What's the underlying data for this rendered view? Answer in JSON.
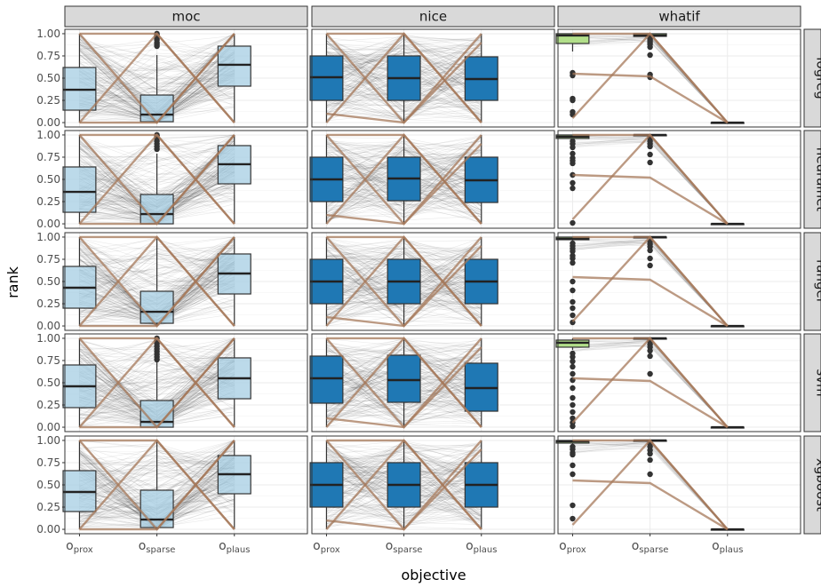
{
  "chart_data": {
    "type": "box",
    "facet_columns": [
      "moc",
      "nice",
      "whatif"
    ],
    "facet_rows": [
      "logreg",
      "neuralnet",
      "ranger",
      "svm",
      "xgboost"
    ],
    "x_categories": [
      {
        "base": "o",
        "sub": "prox"
      },
      {
        "base": "o",
        "sub": "sparse"
      },
      {
        "base": "o",
        "sub": "plaus"
      }
    ],
    "xlabel": "objective",
    "ylabel": "rank",
    "ylim": [
      0,
      1
    ],
    "yticks": [
      "0.00",
      "0.25",
      "0.50",
      "0.75",
      "1.00"
    ],
    "colors": {
      "moc_box": "#a6cee3",
      "nice_box": "#1f78b4",
      "whatif_box": "#b2df8a",
      "highlight_line": "#a6785a",
      "background_line": "#000000",
      "strip_fill": "#d9d9d9",
      "grid": "#ebebeb"
    },
    "grid": true,
    "panels": [
      {
        "col": "moc",
        "row": "logreg",
        "boxes": [
          {
            "q1": 0.14,
            "median": 0.37,
            "q3": 0.62,
            "lo": 0.0,
            "hi": 1.0
          },
          {
            "q1": 0.01,
            "median": 0.09,
            "q3": 0.31,
            "lo": 0.0,
            "hi": 0.76,
            "outliers": [
              0.86,
              0.88,
              0.9,
              0.93,
              0.95,
              0.97,
              0.99,
              1.0
            ]
          },
          {
            "q1": 0.41,
            "median": 0.65,
            "q3": 0.86,
            "lo": 0.0,
            "hi": 1.0
          }
        ]
      },
      {
        "col": "nice",
        "row": "logreg",
        "boxes": [
          {
            "q1": 0.25,
            "median": 0.51,
            "q3": 0.75,
            "lo": 0.0,
            "hi": 1.0
          },
          {
            "q1": 0.25,
            "median": 0.5,
            "q3": 0.75,
            "lo": 0.0,
            "hi": 1.0
          },
          {
            "q1": 0.25,
            "median": 0.49,
            "q3": 0.74,
            "lo": 0.0,
            "hi": 1.0
          }
        ]
      },
      {
        "col": "whatif",
        "row": "logreg",
        "boxes": [
          {
            "q1": 0.89,
            "median": 0.98,
            "q3": 1.0,
            "lo": 0.8,
            "hi": 1.0,
            "outliers": [
              0.56,
              0.53,
              0.27,
              0.25,
              0.12,
              0.09
            ]
          },
          {
            "q1": 0.97,
            "median": 0.98,
            "q3": 1.0,
            "lo": 0.95,
            "hi": 1.0,
            "outliers": [
              0.94,
              0.92,
              0.9,
              0.88,
              0.85,
              0.76,
              0.54,
              0.51
            ]
          },
          {
            "q1": 0.0,
            "median": 0.0,
            "q3": 0.0,
            "lo": 0.0,
            "hi": 0.0
          }
        ]
      },
      {
        "col": "moc",
        "row": "neuralnet",
        "boxes": [
          {
            "q1": 0.13,
            "median": 0.36,
            "q3": 0.64,
            "lo": 0.0,
            "hi": 1.0
          },
          {
            "q1": 0.0,
            "median": 0.11,
            "q3": 0.33,
            "lo": 0.0,
            "hi": 0.79,
            "outliers": [
              0.84,
              0.87,
              0.9,
              0.93,
              0.96,
              0.99,
              1.0
            ]
          },
          {
            "q1": 0.45,
            "median": 0.67,
            "q3": 0.88,
            "lo": 0.0,
            "hi": 1.0
          }
        ]
      },
      {
        "col": "nice",
        "row": "neuralnet",
        "boxes": [
          {
            "q1": 0.25,
            "median": 0.5,
            "q3": 0.75,
            "lo": 0.0,
            "hi": 1.0
          },
          {
            "q1": 0.26,
            "median": 0.51,
            "q3": 0.75,
            "lo": 0.0,
            "hi": 1.0
          },
          {
            "q1": 0.24,
            "median": 0.49,
            "q3": 0.75,
            "lo": 0.0,
            "hi": 1.0
          }
        ]
      },
      {
        "col": "whatif",
        "row": "neuralnet",
        "boxes": [
          {
            "q1": 0.96,
            "median": 0.98,
            "q3": 1.0,
            "lo": 0.95,
            "hi": 1.0,
            "outliers": [
              0.93,
              0.9,
              0.86,
              0.79,
              0.74,
              0.71,
              0.68,
              0.55,
              0.46,
              0.4,
              0.01
            ]
          },
          {
            "q1": 0.99,
            "median": 1.0,
            "q3": 1.0,
            "lo": 0.98,
            "hi": 1.0,
            "outliers": [
              0.96,
              0.93,
              0.9,
              0.87,
              0.78,
              0.69
            ]
          },
          {
            "q1": 0.0,
            "median": 0.0,
            "q3": 0.0,
            "lo": 0.0,
            "hi": 0.0
          }
        ]
      },
      {
        "col": "moc",
        "row": "ranger",
        "boxes": [
          {
            "q1": 0.2,
            "median": 0.43,
            "q3": 0.67,
            "lo": 0.0,
            "hi": 1.0
          },
          {
            "q1": 0.03,
            "median": 0.16,
            "q3": 0.39,
            "lo": 0.0,
            "hi": 1.0
          },
          {
            "q1": 0.36,
            "median": 0.59,
            "q3": 0.81,
            "lo": 0.0,
            "hi": 1.0
          }
        ]
      },
      {
        "col": "nice",
        "row": "ranger",
        "boxes": [
          {
            "q1": 0.25,
            "median": 0.5,
            "q3": 0.75,
            "lo": 0.0,
            "hi": 1.0
          },
          {
            "q1": 0.25,
            "median": 0.5,
            "q3": 0.75,
            "lo": 0.0,
            "hi": 1.0
          },
          {
            "q1": 0.25,
            "median": 0.5,
            "q3": 0.75,
            "lo": 0.0,
            "hi": 1.0
          }
        ]
      },
      {
        "col": "whatif",
        "row": "ranger",
        "boxes": [
          {
            "q1": 0.97,
            "median": 0.98,
            "q3": 1.0,
            "lo": 0.96,
            "hi": 1.0,
            "outliers": [
              0.93,
              0.9,
              0.87,
              0.84,
              0.79,
              0.76,
              0.71,
              0.5,
              0.4,
              0.27,
              0.2,
              0.12,
              0.04
            ]
          },
          {
            "q1": 0.99,
            "median": 1.0,
            "q3": 1.0,
            "lo": 0.98,
            "hi": 1.0,
            "outliers": [
              0.95,
              0.92,
              0.89,
              0.85,
              0.76,
              0.68
            ]
          },
          {
            "q1": 0.0,
            "median": 0.0,
            "q3": 0.0,
            "lo": 0.0,
            "hi": 0.0
          }
        ]
      },
      {
        "col": "moc",
        "row": "svm",
        "boxes": [
          {
            "q1": 0.22,
            "median": 0.46,
            "q3": 0.7,
            "lo": 0.0,
            "hi": 1.0
          },
          {
            "q1": 0.0,
            "median": 0.06,
            "q3": 0.3,
            "lo": 0.0,
            "hi": 0.74,
            "outliers": [
              0.76,
              0.79,
              0.82,
              0.85,
              0.88,
              0.91,
              0.94,
              0.97,
              1.0
            ]
          },
          {
            "q1": 0.32,
            "median": 0.55,
            "q3": 0.78,
            "lo": 0.0,
            "hi": 1.0
          }
        ]
      },
      {
        "col": "nice",
        "row": "svm",
        "boxes": [
          {
            "q1": 0.27,
            "median": 0.55,
            "q3": 0.8,
            "lo": 0.0,
            "hi": 1.0
          },
          {
            "q1": 0.28,
            "median": 0.53,
            "q3": 0.81,
            "lo": 0.0,
            "hi": 1.0
          },
          {
            "q1": 0.18,
            "median": 0.44,
            "q3": 0.72,
            "lo": 0.0,
            "hi": 1.0
          }
        ]
      },
      {
        "col": "whatif",
        "row": "svm",
        "boxes": [
          {
            "q1": 0.9,
            "median": 0.95,
            "q3": 0.98,
            "lo": 0.87,
            "hi": 1.0,
            "outliers": [
              0.83,
              0.79,
              0.74,
              0.68,
              0.6,
              0.53,
              0.44,
              0.33,
              0.25,
              0.17,
              0.1,
              0.05,
              0.01
            ]
          },
          {
            "q1": 0.99,
            "median": 1.0,
            "q3": 1.0,
            "lo": 0.98,
            "hi": 1.0,
            "outliers": [
              0.96,
              0.93,
              0.9,
              0.86,
              0.8,
              0.6
            ]
          },
          {
            "q1": 0.0,
            "median": 0.0,
            "q3": 0.0,
            "lo": 0.0,
            "hi": 0.0
          }
        ]
      },
      {
        "col": "moc",
        "row": "xgboost",
        "boxes": [
          {
            "q1": 0.2,
            "median": 0.42,
            "q3": 0.66,
            "lo": 0.0,
            "hi": 1.0
          },
          {
            "q1": 0.02,
            "median": 0.11,
            "q3": 0.44,
            "lo": 0.0,
            "hi": 1.0
          },
          {
            "q1": 0.4,
            "median": 0.62,
            "q3": 0.83,
            "lo": 0.0,
            "hi": 1.0
          }
        ]
      },
      {
        "col": "nice",
        "row": "xgboost",
        "boxes": [
          {
            "q1": 0.25,
            "median": 0.5,
            "q3": 0.75,
            "lo": 0.0,
            "hi": 1.0
          },
          {
            "q1": 0.25,
            "median": 0.5,
            "q3": 0.75,
            "lo": 0.0,
            "hi": 1.0
          },
          {
            "q1": 0.25,
            "median": 0.5,
            "q3": 0.75,
            "lo": 0.0,
            "hi": 1.0
          }
        ]
      },
      {
        "col": "whatif",
        "row": "xgboost",
        "boxes": [
          {
            "q1": 0.97,
            "median": 0.99,
            "q3": 1.0,
            "lo": 0.96,
            "hi": 1.0,
            "outliers": [
              0.93,
              0.9,
              0.86,
              0.84,
              0.72,
              0.62,
              0.27,
              0.12
            ]
          },
          {
            "q1": 0.99,
            "median": 1.0,
            "q3": 1.0,
            "lo": 0.98,
            "hi": 1.0,
            "outliers": [
              0.96,
              0.93,
              0.89,
              0.85,
              0.78,
              0.62
            ]
          },
          {
            "q1": 0.0,
            "median": 0.0,
            "q3": 0.0,
            "lo": 0.0,
            "hi": 0.0
          }
        ]
      }
    ],
    "highlight_paths": {
      "moc": [
        [
          0.0,
          1.0,
          0.0
        ],
        [
          1.0,
          0.0,
          1.0
        ],
        [
          1.0,
          1.0,
          0.0
        ],
        [
          0.0,
          0.0,
          1.0
        ]
      ],
      "nice": [
        [
          1.0,
          0.0,
          1.0
        ],
        [
          0.0,
          1.0,
          0.0
        ],
        [
          1.0,
          1.0,
          0.0
        ],
        [
          0.1,
          0.0,
          0.9
        ]
      ],
      "whatif": [
        [
          1.0,
          1.0,
          0.0
        ],
        [
          0.55,
          0.52,
          0.0
        ],
        [
          0.05,
          1.0,
          0.0
        ]
      ]
    }
  }
}
